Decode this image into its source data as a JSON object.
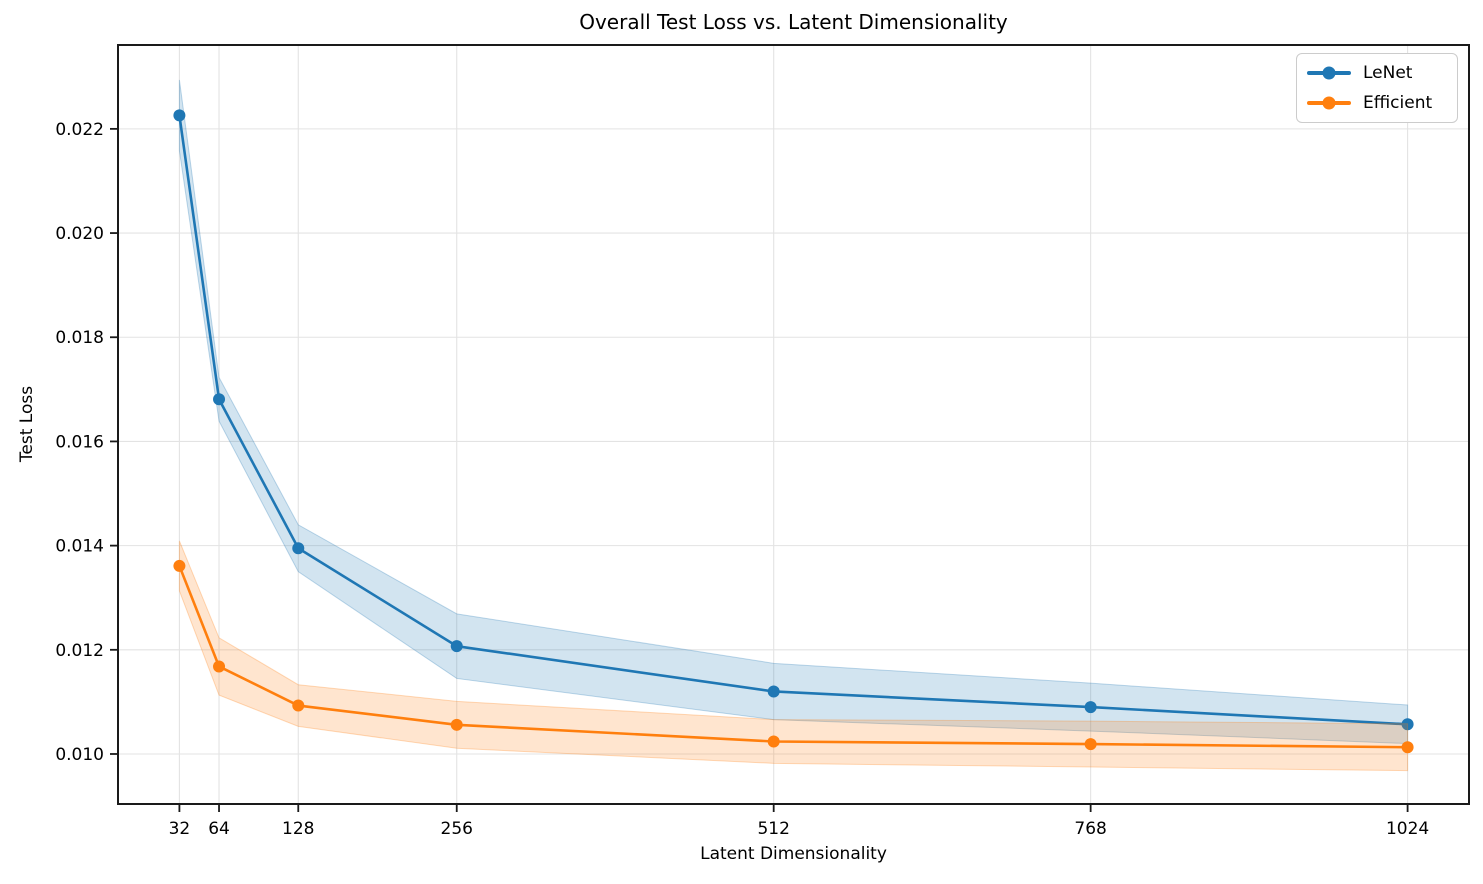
{
  "chart_data": {
    "type": "line",
    "title": "Overall Test Loss vs. Latent Dimensionality",
    "xlabel": "Latent Dimensionality",
    "ylabel": "Test Loss",
    "x": [
      32,
      64,
      128,
      256,
      512,
      768,
      1024
    ],
    "x_tick_labels": [
      "32",
      "64",
      "128",
      "256",
      "512",
      "768",
      "1024"
    ],
    "y_ticks": [
      0.01,
      0.012,
      0.014,
      0.016,
      0.018,
      0.02,
      0.022
    ],
    "y_tick_labels": [
      "0.010",
      "0.012",
      "0.014",
      "0.016",
      "0.018",
      "0.020",
      "0.022"
    ],
    "xlim": [
      -17.6,
      1073.6
    ],
    "ylim": [
      0.00904,
      0.02361
    ],
    "grid": true,
    "legend_position": "upper right",
    "band_alpha": 0.2,
    "series": [
      {
        "name": "LeNet",
        "color": "#1f77b4",
        "values": [
          0.02226,
          0.01681,
          0.01395,
          0.01207,
          0.0112,
          0.0109,
          0.01057
        ],
        "std": [
          0.00068,
          0.00042,
          0.00045,
          0.00062,
          0.00054,
          0.00046,
          0.00037
        ]
      },
      {
        "name": "Efficient",
        "color": "#ff7f0e",
        "values": [
          0.01361,
          0.01168,
          0.01093,
          0.01056,
          0.01024,
          0.01019,
          0.01013
        ],
        "std": [
          0.00048,
          0.00055,
          0.0004,
          0.00045,
          0.00042,
          0.00044,
          0.00045
        ]
      }
    ],
    "colors": {
      "grid": "#e3e3e3",
      "spine": "#1a1a1a",
      "tick_text": "#000000"
    }
  }
}
